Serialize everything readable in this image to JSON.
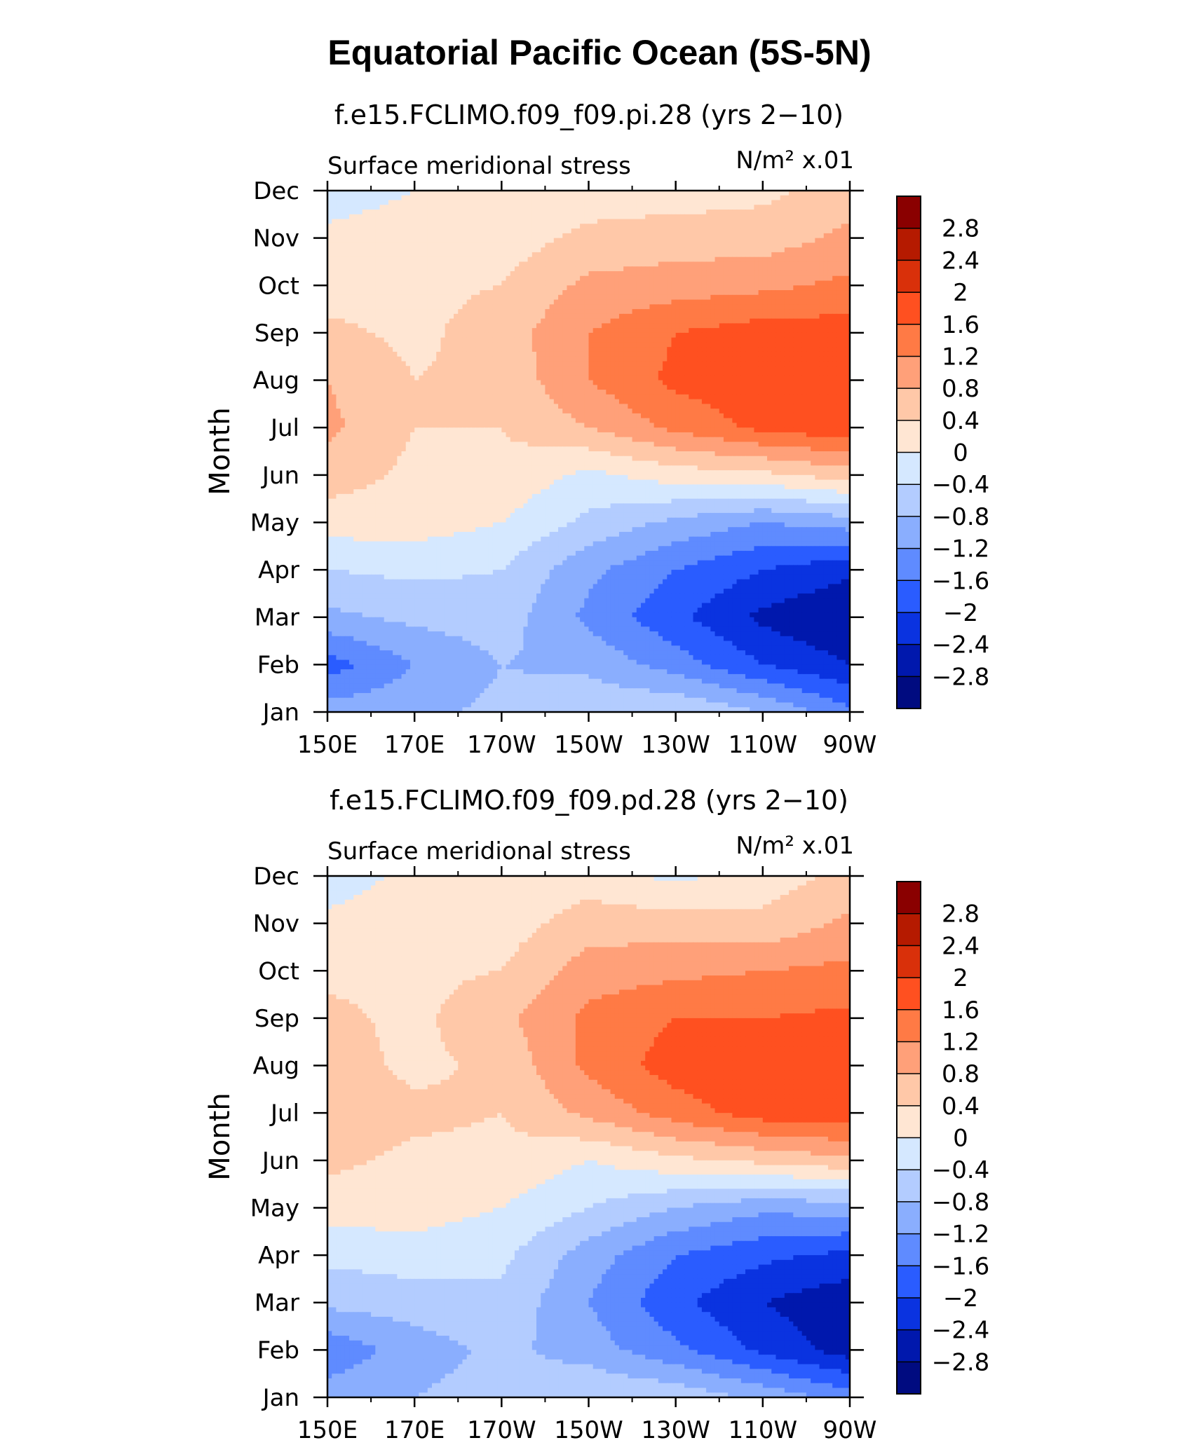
{
  "title": "Equatorial Pacific Ocean (5S-5N)",
  "colorbar": {
    "labels": [
      "2.8",
      "2.4",
      "2",
      "1.6",
      "1.2",
      "0.8",
      "0.4",
      "0",
      "−0.4",
      "−0.8",
      "−1.2",
      "−1.6",
      "−2",
      "−2.4",
      "−2.8"
    ],
    "levels": [
      2.8,
      2.4,
      2.0,
      1.6,
      1.2,
      0.8,
      0.4,
      0,
      -0.4,
      -0.8,
      -1.2,
      -1.6,
      -2.0,
      -2.4,
      -2.8
    ],
    "colors": [
      "#8a0000",
      "#b51a00",
      "#d9300a",
      "#ff5020",
      "#ff7a45",
      "#ffa079",
      "#ffc8a8",
      "#ffe6d3",
      "#d5e8ff",
      "#b3ccff",
      "#8aaefe",
      "#5f8bff",
      "#2a5cff",
      "#0a33e0",
      "#0018ad",
      "#000b80"
    ]
  },
  "chart_data": [
    {
      "type": "heatmap",
      "title": "f.e15.FCLIMO.f09_f09.pi.28 (yrs 2−10)",
      "left_label": "Surface meridional stress",
      "units_label": "N/m² x.01",
      "ylabel": "Month",
      "x": [
        "150E",
        "170E",
        "170W",
        "150W",
        "130W",
        "110W",
        "90W"
      ],
      "y": [
        "Jan",
        "Feb",
        "Mar",
        "Apr",
        "May",
        "Jun",
        "Jul",
        "Aug",
        "Sep",
        "Oct",
        "Nov",
        "Dec"
      ],
      "z": [
        [
          -1.0,
          -0.9,
          -0.7,
          -0.5,
          -0.4,
          -0.8,
          -1.5
        ],
        [
          -1.8,
          -1.2,
          -0.8,
          -0.9,
          -1.4,
          -2.0,
          -2.4
        ],
        [
          -0.9,
          -0.7,
          -0.6,
          -1.3,
          -1.9,
          -2.5,
          -2.8
        ],
        [
          -0.4,
          -0.3,
          -0.4,
          -1.1,
          -1.6,
          -2.0,
          -2.3
        ],
        [
          0.2,
          0.2,
          0.0,
          -0.5,
          -0.9,
          -1.2,
          -1.0
        ],
        [
          0.6,
          0.3,
          0.3,
          -0.1,
          0.2,
          0.3,
          0.6
        ],
        [
          0.9,
          0.4,
          0.4,
          0.8,
          1.3,
          1.7,
          1.9
        ],
        [
          0.8,
          0.4,
          0.5,
          1.2,
          1.7,
          1.9,
          2.0
        ],
        [
          0.5,
          0.3,
          0.6,
          1.2,
          1.6,
          1.8,
          1.8
        ],
        [
          0.2,
          0.3,
          0.4,
          0.9,
          1.0,
          1.1,
          1.3
        ],
        [
          0.1,
          0.2,
          0.2,
          0.5,
          0.6,
          0.6,
          0.9
        ],
        [
          -0.2,
          0.0,
          0.1,
          0.2,
          0.2,
          0.3,
          0.6
        ]
      ]
    },
    {
      "type": "heatmap",
      "title": "f.e15.FCLIMO.f09_f09.pd.28 (yrs 2−10)",
      "left_label": "Surface meridional stress",
      "units_label": "N/m² x.01",
      "ylabel": "Month",
      "x": [
        "150E",
        "170E",
        "170W",
        "150W",
        "130W",
        "110W",
        "90W"
      ],
      "y": [
        "Jan",
        "Feb",
        "Mar",
        "Apr",
        "May",
        "Jun",
        "Jul",
        "Aug",
        "Sep",
        "Oct",
        "Nov",
        "Dec"
      ],
      "z": [
        [
          -1.0,
          -0.8,
          -0.6,
          -0.4,
          -0.5,
          -0.9,
          -1.4
        ],
        [
          -1.5,
          -1.0,
          -0.7,
          -1.0,
          -1.5,
          -2.1,
          -2.6
        ],
        [
          -0.7,
          -0.6,
          -0.5,
          -1.2,
          -1.9,
          -2.4,
          -2.7
        ],
        [
          -0.3,
          -0.2,
          -0.3,
          -1.0,
          -1.6,
          -1.9,
          -2.1
        ],
        [
          0.2,
          0.2,
          0.0,
          -0.4,
          -0.8,
          -1.1,
          -1.0
        ],
        [
          0.5,
          0.3,
          0.3,
          0.0,
          0.3,
          0.5,
          0.7
        ],
        [
          0.7,
          0.5,
          0.4,
          0.9,
          1.4,
          1.8,
          1.9
        ],
        [
          0.6,
          0.3,
          0.5,
          1.3,
          1.8,
          1.9,
          2.0
        ],
        [
          0.5,
          0.3,
          0.7,
          1.3,
          1.6,
          1.6,
          1.7
        ],
        [
          0.3,
          0.3,
          0.4,
          1.0,
          1.1,
          1.2,
          1.3
        ],
        [
          0.1,
          0.2,
          0.2,
          0.6,
          0.6,
          0.5,
          0.9
        ],
        [
          -0.2,
          0.1,
          0.1,
          0.2,
          -0.1,
          0.2,
          0.5
        ]
      ]
    }
  ]
}
